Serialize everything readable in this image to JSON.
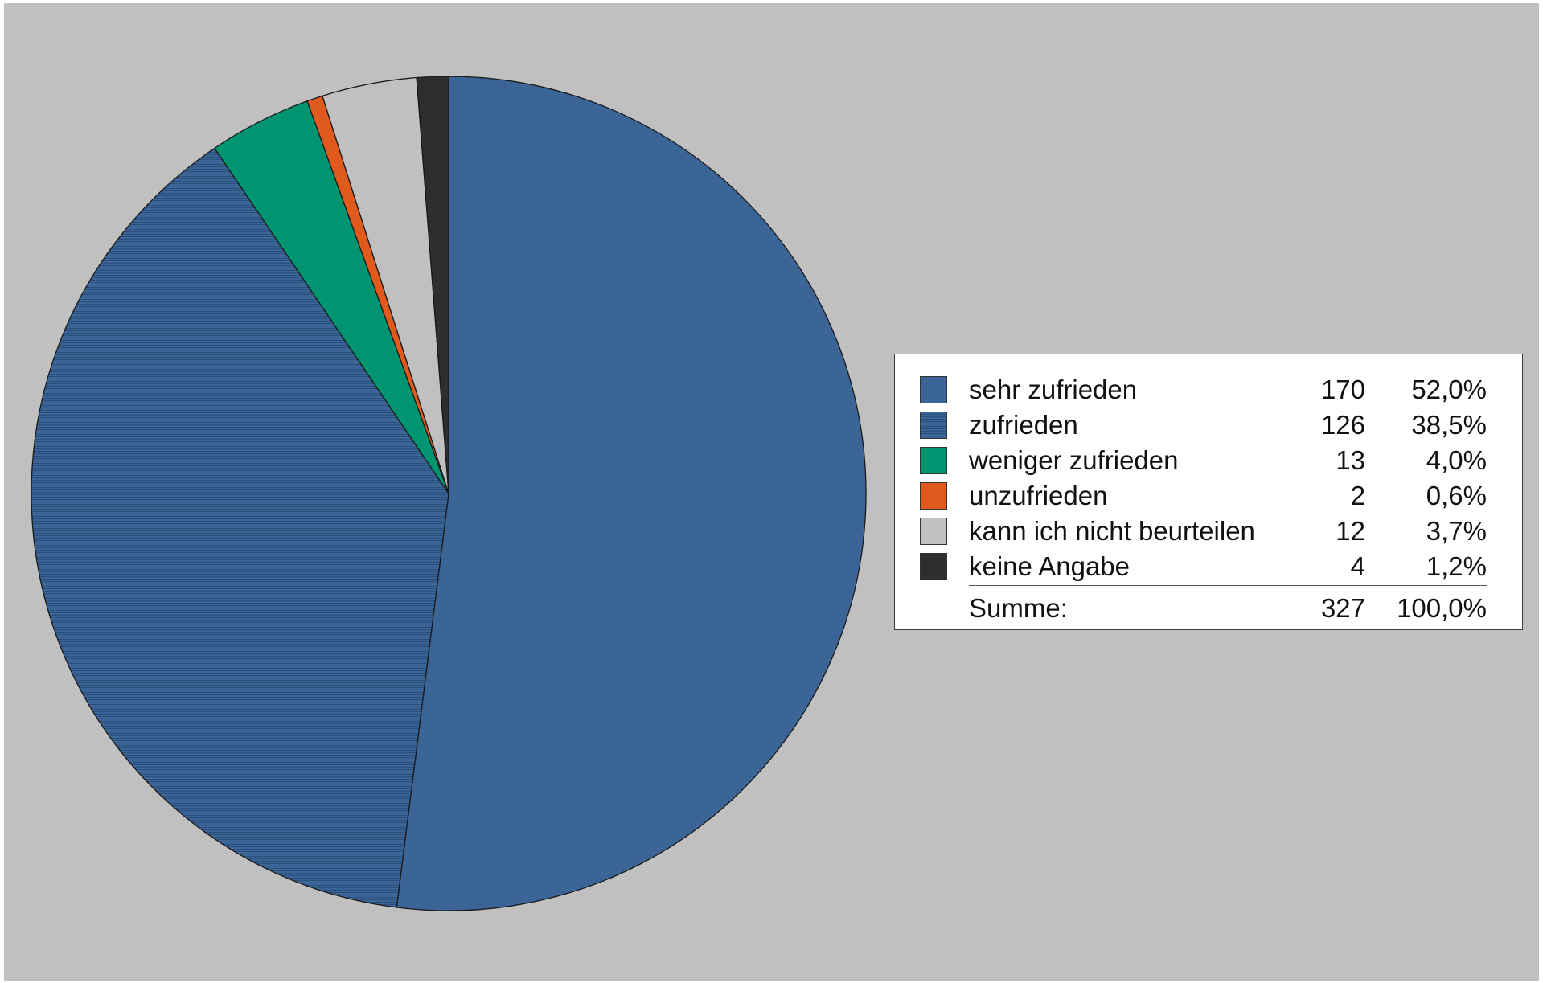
{
  "chart_data": {
    "type": "pie",
    "slices": [
      {
        "label": "sehr zufrieden",
        "count": "170",
        "percent": "52,0%",
        "value": 170,
        "color": "#3b6596",
        "hatched": false
      },
      {
        "label": "zufrieden",
        "count": "126",
        "percent": "38,5%",
        "value": 126,
        "color": "#3b6596",
        "hatched": true
      },
      {
        "label": "weniger zufrieden",
        "count": "13",
        "percent": "4,0%",
        "value": 13,
        "color": "#009570",
        "hatched": false
      },
      {
        "label": "unzufrieden",
        "count": "2",
        "percent": "0,6%",
        "value": 2,
        "color": "#e05a1e",
        "hatched": false
      },
      {
        "label": "kann ich nicht beurteilen",
        "count": "12",
        "percent": "3,7%",
        "value": 12,
        "color": "#c0c0c0",
        "hatched": false
      },
      {
        "label": "keine Angabe",
        "count": "4",
        "percent": "1,2%",
        "value": 4,
        "color": "#2e2e2e",
        "hatched": false
      }
    ],
    "total": {
      "label": "Summe:",
      "count": "327",
      "percent": "100,0%"
    },
    "legend_position": "right",
    "start_angle": "12 o'clock",
    "direction": "clockwise",
    "background_color": "#c0c0c0"
  }
}
